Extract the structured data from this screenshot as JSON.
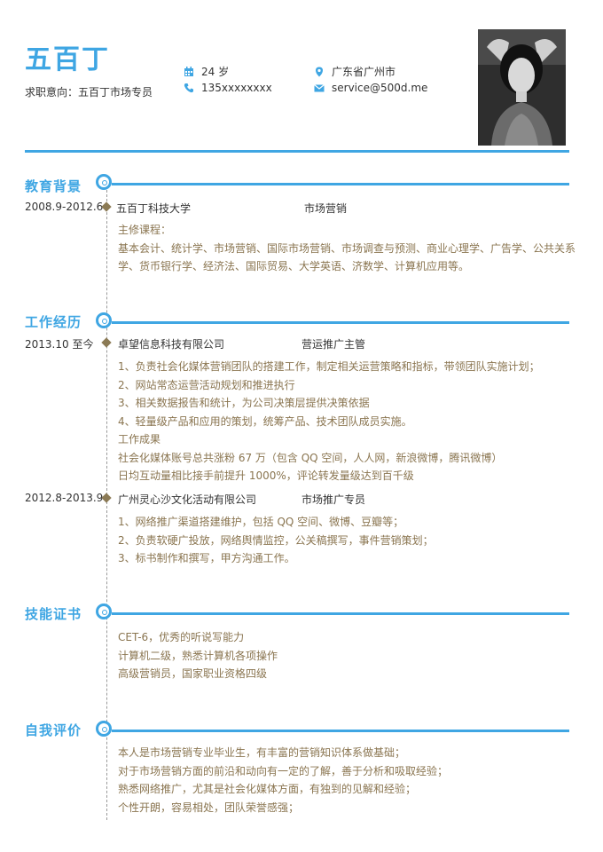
{
  "header": {
    "name": "五百丁",
    "intent": "求职意向：五百丁市场专员",
    "age": "24 岁",
    "phone": "135xxxxxxxx",
    "location": "广东省广州市",
    "email": "service@500d.me"
  },
  "education": {
    "title": "教育背景",
    "date": "2008.9-2012.6",
    "school": "五百丁科技大学",
    "major": "市场营销",
    "lines": [
      "主修课程：",
      "基本会计、统计学、市场营销、国际市场营销、市场调查与预测、商业心理学、广告学、公共关系",
      "学、货币银行学、经济法、国际贸易、大学英语、济数学、计算机应用等。"
    ]
  },
  "work": {
    "title": "工作经历",
    "jobs": [
      {
        "date": "2013.10 至今",
        "company": "卓望信息科技有限公司",
        "position": "营运推广主管",
        "lines": [
          "1、负责社会化媒体营销团队的搭建工作，制定相关运营策略和指标，带领团队实施计划；",
          "2、网站常态运营活动规划和推进执行",
          "3、相关数据报告和统计，为公司决策层提供决策依据",
          "4、轻量级产品和应用的策划，统筹产品、技术团队成员实施。",
          "工作成果",
          "社会化媒体账号总共涨粉 67 万（包含 QQ 空间，人人网，新浪微博，腾讯微博）",
          "日均互动量相比接手前提升 1000%，评论转发量级达到百千级"
        ]
      },
      {
        "date": "2012.8-2013.9",
        "company": "广州灵心沙文化活动有限公司",
        "position": "市场推广专员",
        "lines": [
          "1、网络推广渠道搭建维护，包括 QQ 空间、微博、豆瓣等；",
          "2、负责软硬广投放，网络舆情监控，公关稿撰写，事件营销策划；",
          "3、标书制作和撰写，甲方沟通工作。"
        ]
      }
    ]
  },
  "skills": {
    "title": "技能证书",
    "lines": [
      "CET-6，优秀的听说写能力",
      "计算机二级，熟悉计算机各项操作",
      "高级营销员，国家职业资格四级"
    ]
  },
  "self": {
    "title": "自我评价",
    "lines": [
      "本人是市场营销专业毕业生，有丰富的营销知识体系做基础；",
      "对于市场营销方面的前沿和动向有一定的了解，善于分析和吸取经验；",
      "熟悉网络推广，尤其是社会化媒体方面，有独到的见解和经验；",
      "个性开朗，容易相处，团队荣誉感强；"
    ]
  },
  "colors": {
    "accent": "#3fa6e3",
    "text": "#333333",
    "body": "#8a7550",
    "diamond": "#8b7a55"
  }
}
